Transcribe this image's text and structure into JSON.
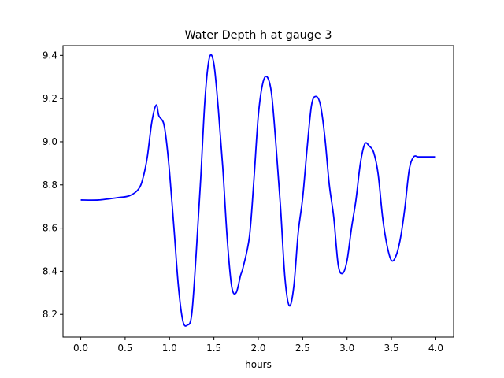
{
  "chart_data": {
    "type": "line",
    "title": "Water Depth h at gauge 3",
    "xlabel": "hours",
    "ylabel": "",
    "xlim": [
      -0.2,
      4.2
    ],
    "ylim": [
      8.095,
      9.445
    ],
    "x_ticks": [
      0.0,
      0.5,
      1.0,
      1.5,
      2.0,
      2.5,
      3.0,
      3.5,
      4.0
    ],
    "x_tick_labels": [
      "0.0",
      "0.5",
      "1.0",
      "1.5",
      "2.0",
      "2.5",
      "3.0",
      "3.5",
      "4.0"
    ],
    "y_ticks": [
      8.2,
      8.4,
      8.6,
      8.8,
      9.0,
      9.2,
      9.4
    ],
    "y_tick_labels": [
      "8.2",
      "8.4",
      "8.6",
      "8.8",
      "9.0",
      "9.2",
      "9.4"
    ],
    "grid": false,
    "legend": "none",
    "series": [
      {
        "color": "#0000ff",
        "x": [
          0.0,
          0.2,
          0.4,
          0.55,
          0.65,
          0.7,
          0.75,
          0.8,
          0.85,
          0.88,
          0.93,
          0.96,
          1.0,
          1.05,
          1.1,
          1.15,
          1.2,
          1.25,
          1.3,
          1.35,
          1.4,
          1.45,
          1.5,
          1.55,
          1.6,
          1.65,
          1.7,
          1.75,
          1.8,
          1.83,
          1.9,
          1.95,
          2.0,
          2.05,
          2.1,
          2.15,
          2.2,
          2.25,
          2.3,
          2.35,
          2.4,
          2.45,
          2.5,
          2.55,
          2.6,
          2.65,
          2.7,
          2.75,
          2.8,
          2.85,
          2.9,
          2.95,
          3.0,
          3.05,
          3.1,
          3.15,
          3.2,
          3.25,
          3.3,
          3.35,
          3.4,
          3.45,
          3.5,
          3.55,
          3.6,
          3.65,
          3.7,
          3.75,
          3.8,
          3.85,
          3.9,
          3.95,
          4.0
        ],
        "y": [
          8.73,
          8.73,
          8.74,
          8.75,
          8.78,
          8.83,
          8.93,
          9.09,
          9.17,
          9.12,
          9.09,
          9.02,
          8.86,
          8.6,
          8.33,
          8.17,
          8.15,
          8.2,
          8.48,
          8.82,
          9.2,
          9.39,
          9.36,
          9.15,
          8.88,
          8.55,
          8.33,
          8.3,
          8.38,
          8.42,
          8.56,
          8.82,
          9.12,
          9.27,
          9.3,
          9.22,
          8.98,
          8.7,
          8.37,
          8.24,
          8.33,
          8.58,
          8.74,
          8.97,
          9.17,
          9.21,
          9.17,
          9.02,
          8.8,
          8.65,
          8.43,
          8.39,
          8.45,
          8.6,
          8.73,
          8.9,
          8.99,
          8.98,
          8.95,
          8.85,
          8.65,
          8.52,
          8.45,
          8.47,
          8.55,
          8.69,
          8.87,
          8.93,
          8.93,
          8.93,
          8.93,
          8.93,
          8.93
        ]
      }
    ]
  }
}
